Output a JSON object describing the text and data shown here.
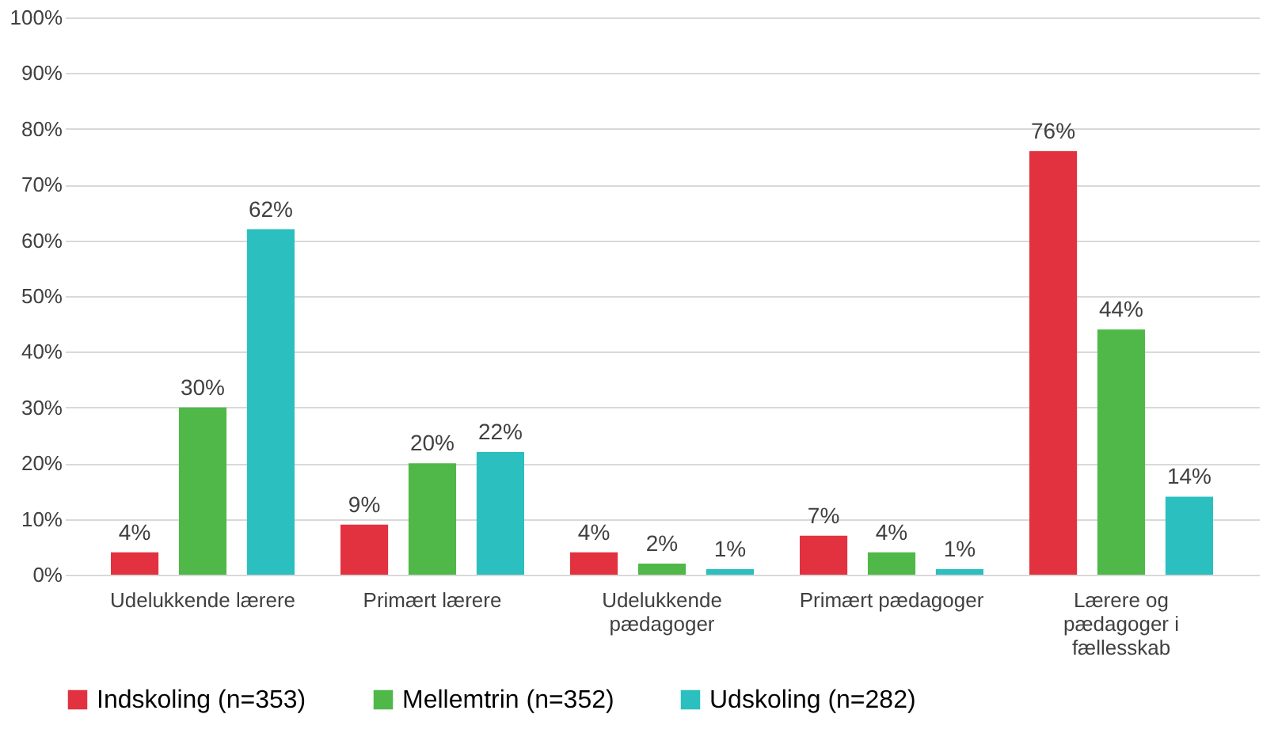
{
  "chart_data": {
    "type": "bar",
    "categories": [
      "Udelukkende lærere",
      "Primært lærere",
      "Udelukkende pædagoger",
      "Primært pædagoger",
      "Lærere og pædagoger i fællesskab"
    ],
    "series": [
      {
        "name": "Indskoling (n=353)",
        "color": "#e3323f",
        "values": [
          4,
          9,
          4,
          7,
          76
        ],
        "value_labels": [
          "4%",
          "9%",
          "4%",
          "7%",
          "76%"
        ]
      },
      {
        "name": "Mellemtrin (n=352)",
        "color": "#4fb848",
        "values": [
          30,
          20,
          2,
          4,
          44
        ],
        "value_labels": [
          "30%",
          "20%",
          "2%",
          "4%",
          "44%"
        ]
      },
      {
        "name": "Udskoling (n=282)",
        "color": "#2bbfbf",
        "values": [
          62,
          22,
          1,
          1,
          14
        ],
        "value_labels": [
          "62%",
          "22%",
          "1%",
          "1%",
          "14%"
        ]
      }
    ],
    "ylim": [
      0,
      100
    ],
    "yticks": [
      {
        "value": 0,
        "label": "0%"
      },
      {
        "value": 10,
        "label": "10%"
      },
      {
        "value": 20,
        "label": "20%"
      },
      {
        "value": 30,
        "label": "30%"
      },
      {
        "value": 40,
        "label": "40%"
      },
      {
        "value": 50,
        "label": "50%"
      },
      {
        "value": 60,
        "label": "60%"
      },
      {
        "value": 70,
        "label": "70%"
      },
      {
        "value": 80,
        "label": "80%"
      },
      {
        "value": 90,
        "label": "90%"
      },
      {
        "value": 100,
        "label": "100%"
      }
    ],
    "grid": "y",
    "legend": "bottom"
  }
}
